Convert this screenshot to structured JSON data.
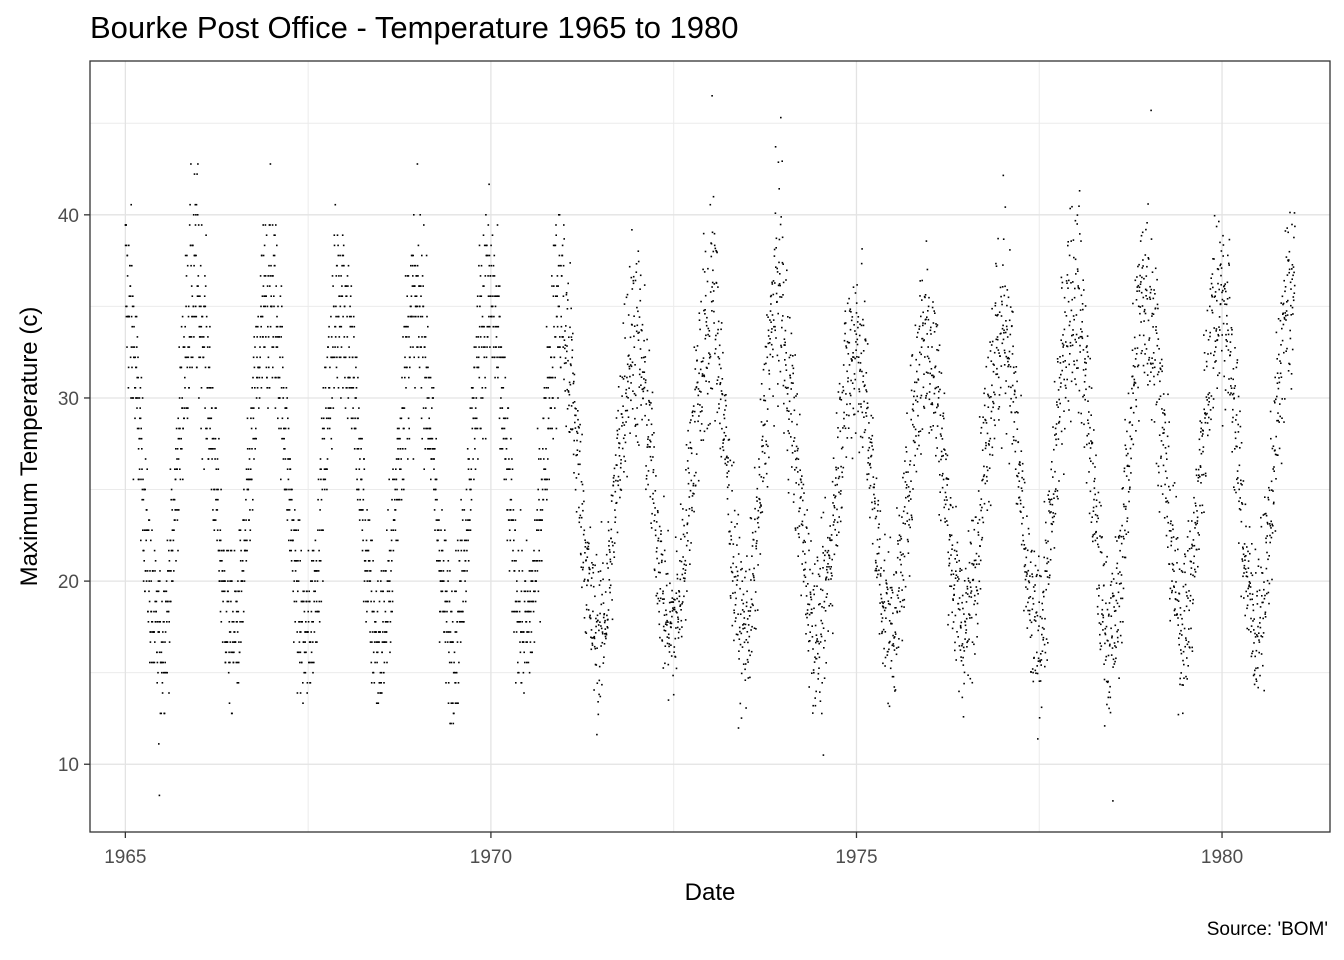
{
  "chart_data": {
    "type": "scatter",
    "title": "Bourke Post Office - Temperature 1965 to 1980",
    "xlabel": "Date",
    "ylabel": "Maximum Temperature (c)",
    "caption": "Source: 'BOM'",
    "x_ticks": [
      "1965",
      "1970",
      "1975",
      "1980"
    ],
    "y_ticks": [
      10,
      20,
      30,
      40
    ],
    "xlim": [
      "1964-07-08",
      "1981-06-24"
    ],
    "ylim": [
      6.3,
      48.4
    ],
    "grid": true,
    "legend": "none",
    "point_color": "#000000",
    "series": [
      {
        "note": "daily maximum temperature observations, 1965-01-01 to 1980-12-31",
        "seasonal_cycle": {
          "min_by_year": [
            16.5,
            17.0,
            16.8,
            16.6,
            16.9,
            17.2,
            17.0,
            17.4,
            17.3,
            17.2,
            17.5,
            17.5,
            17.0,
            16.8,
            17.8,
            17.6
          ],
          "max_by_year": [
            36.5,
            35.2,
            36.0,
            34.5,
            35.5,
            35.5,
            33.5,
            33.0,
            36.5,
            32.5,
            33.5,
            33.0,
            35.5,
            36.0,
            35.5,
            36.0
          ]
        },
        "extremes": [
          {
            "x": "1965-06-20",
            "y": 8.3
          },
          {
            "x": "1973-01-10",
            "y": 46.5
          },
          {
            "x": "1978-07-05",
            "y": 8.0
          },
          {
            "x": "1979-01-12",
            "y": 45.7
          },
          {
            "x": "1974-07-20",
            "y": 10.5
          }
        ]
      }
    ]
  }
}
